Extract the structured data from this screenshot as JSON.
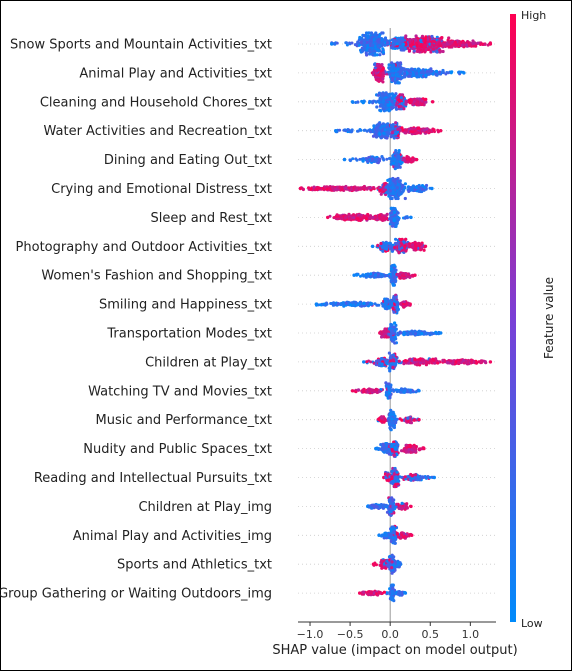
{
  "chart_data": {
    "type": "scatter",
    "subtype": "shap-beeswarm",
    "title": "",
    "xlabel": "SHAP value (impact on model output)",
    "ylabel": "",
    "xlim": [
      -1.15,
      1.32
    ],
    "xticks": [
      -1.0,
      -0.5,
      0.0,
      0.5,
      1.0
    ],
    "xtick_labels": [
      "−1.0",
      "−0.5",
      "0.0",
      "0.5",
      "1.0"
    ],
    "zero_line": true,
    "row_gridlines": "dotted",
    "colorbar": {
      "label": "Feature value",
      "high_label": "High",
      "low_label": "Low",
      "low_color": "#008bfb",
      "high_color": "#ff0051",
      "placement": "right"
    },
    "features": [
      {
        "name": "Snow Sports and Mountain Activities_txt",
        "lo": -0.73,
        "hi": 1.25,
        "clusters": [
          {
            "x": -0.22,
            "w": 0.16,
            "h": 11,
            "hiFrac": 0.0
          },
          {
            "x": 0.12,
            "w": 0.14,
            "h": 6,
            "hiFrac": 0.15
          },
          {
            "x": 0.45,
            "w": 0.22,
            "h": 8,
            "hiFrac": 0.85
          },
          {
            "x": 0.85,
            "w": 0.25,
            "h": 3,
            "hiFrac": 1.0
          }
        ]
      },
      {
        "name": "Animal Play and Activities_txt",
        "lo": -0.22,
        "hi": 0.92,
        "clusters": [
          {
            "x": -0.13,
            "w": 0.07,
            "h": 9,
            "hiFrac": 0.85
          },
          {
            "x": 0.07,
            "w": 0.09,
            "h": 10,
            "hiFrac": 0.05
          },
          {
            "x": 0.35,
            "w": 0.25,
            "h": 4,
            "hiFrac": 0.0
          }
        ]
      },
      {
        "name": "Cleaning and Household Chores_txt",
        "lo": -0.47,
        "hi": 0.53,
        "clusters": [
          {
            "x": -0.05,
            "w": 0.11,
            "h": 9,
            "hiFrac": 0.0
          },
          {
            "x": 0.13,
            "w": 0.06,
            "h": 7,
            "hiFrac": 0.6
          },
          {
            "x": 0.33,
            "w": 0.12,
            "h": 3,
            "hiFrac": 0.95
          }
        ]
      },
      {
        "name": "Water Activities and Recreation_txt",
        "lo": -0.68,
        "hi": 0.63,
        "clusters": [
          {
            "x": -0.1,
            "w": 0.11,
            "h": 8,
            "hiFrac": 0.0
          },
          {
            "x": 0.07,
            "w": 0.06,
            "h": 8,
            "hiFrac": 0.5
          },
          {
            "x": 0.35,
            "w": 0.18,
            "h": 3,
            "hiFrac": 1.0
          }
        ]
      },
      {
        "name": "Dining and Eating Out_txt",
        "lo": -0.57,
        "hi": 0.33,
        "clusters": [
          {
            "x": -0.2,
            "w": 0.1,
            "h": 3,
            "hiFrac": 0.0
          },
          {
            "x": 0.08,
            "w": 0.06,
            "h": 9,
            "hiFrac": 0.1
          },
          {
            "x": 0.23,
            "w": 0.06,
            "h": 3,
            "hiFrac": 1.0
          }
        ]
      },
      {
        "name": "Crying and Emotional Distress_txt",
        "lo": -1.12,
        "hi": 0.52,
        "clusters": [
          {
            "x": -0.6,
            "w": 0.35,
            "h": 2,
            "hiFrac": 1.0
          },
          {
            "x": -0.07,
            "w": 0.06,
            "h": 6,
            "hiFrac": 0.7
          },
          {
            "x": 0.06,
            "w": 0.1,
            "h": 10,
            "hiFrac": 0.0
          },
          {
            "x": 0.35,
            "w": 0.12,
            "h": 3,
            "hiFrac": 0.0
          }
        ]
      },
      {
        "name": "Sleep and Rest_txt",
        "lo": -0.78,
        "hi": 0.26,
        "clusters": [
          {
            "x": -0.45,
            "w": 0.22,
            "h": 3,
            "hiFrac": 1.0
          },
          {
            "x": -0.12,
            "w": 0.08,
            "h": 3,
            "hiFrac": 1.0
          },
          {
            "x": 0.05,
            "w": 0.05,
            "h": 9,
            "hiFrac": 0.0
          }
        ]
      },
      {
        "name": "Photography and Outdoor Activities_txt",
        "lo": -0.22,
        "hi": 0.44,
        "clusters": [
          {
            "x": -0.05,
            "w": 0.08,
            "h": 5,
            "hiFrac": 0.1
          },
          {
            "x": 0.14,
            "w": 0.08,
            "h": 7,
            "hiFrac": 0.55
          },
          {
            "x": 0.33,
            "w": 0.08,
            "h": 4,
            "hiFrac": 0.95
          }
        ]
      },
      {
        "name": "Women's Fashion and Shopping_txt",
        "lo": -0.45,
        "hi": 0.31,
        "clusters": [
          {
            "x": -0.18,
            "w": 0.14,
            "h": 2,
            "hiFrac": 0.0
          },
          {
            "x": 0.04,
            "w": 0.04,
            "h": 10,
            "hiFrac": 0.0
          },
          {
            "x": 0.17,
            "w": 0.08,
            "h": 3,
            "hiFrac": 0.95
          }
        ]
      },
      {
        "name": "Smiling and Happiness_txt",
        "lo": -0.92,
        "hi": 0.25,
        "clusters": [
          {
            "x": -0.45,
            "w": 0.25,
            "h": 2,
            "hiFrac": 0.0
          },
          {
            "x": -0.04,
            "w": 0.06,
            "h": 5,
            "hiFrac": 0.1
          },
          {
            "x": 0.06,
            "w": 0.04,
            "h": 9,
            "hiFrac": 0.3
          },
          {
            "x": 0.18,
            "w": 0.04,
            "h": 3,
            "hiFrac": 1.0
          }
        ]
      },
      {
        "name": "Transportation Modes_txt",
        "lo": -0.13,
        "hi": 0.63,
        "clusters": [
          {
            "x": -0.06,
            "w": 0.05,
            "h": 4,
            "hiFrac": 0.9
          },
          {
            "x": 0.03,
            "w": 0.04,
            "h": 10,
            "hiFrac": 0.05
          },
          {
            "x": 0.3,
            "w": 0.2,
            "h": 2,
            "hiFrac": 0.0
          }
        ]
      },
      {
        "name": "Children at Play_txt",
        "lo": -0.33,
        "hi": 1.25,
        "clusters": [
          {
            "x": -0.1,
            "w": 0.08,
            "h": 4,
            "hiFrac": 0.3
          },
          {
            "x": 0.03,
            "w": 0.05,
            "h": 9,
            "hiFrac": 0.2
          },
          {
            "x": 0.35,
            "w": 0.2,
            "h": 3,
            "hiFrac": 0.95
          },
          {
            "x": 0.85,
            "w": 0.25,
            "h": 2,
            "hiFrac": 1.0
          }
        ]
      },
      {
        "name": "Watching TV and Movies_txt",
        "lo": -0.47,
        "hi": 0.36,
        "clusters": [
          {
            "x": -0.25,
            "w": 0.12,
            "h": 2,
            "hiFrac": 1.0
          },
          {
            "x": -0.02,
            "w": 0.03,
            "h": 10,
            "hiFrac": 0.05
          },
          {
            "x": 0.2,
            "w": 0.08,
            "h": 2,
            "hiFrac": 0.0
          }
        ]
      },
      {
        "name": "Music and Performance_txt",
        "lo": -0.15,
        "hi": 0.36,
        "clusters": [
          {
            "x": -0.1,
            "w": 0.04,
            "h": 3,
            "hiFrac": 0.9
          },
          {
            "x": 0.02,
            "w": 0.04,
            "h": 10,
            "hiFrac": 0.05
          },
          {
            "x": 0.22,
            "w": 0.07,
            "h": 3,
            "hiFrac": 0.8
          }
        ]
      },
      {
        "name": "Nudity and Public Spaces_txt",
        "lo": -0.18,
        "hi": 0.42,
        "clusters": [
          {
            "x": -0.05,
            "w": 0.06,
            "h": 5,
            "hiFrac": 0.0
          },
          {
            "x": 0.05,
            "w": 0.05,
            "h": 8,
            "hiFrac": 0.3
          },
          {
            "x": 0.26,
            "w": 0.1,
            "h": 4,
            "hiFrac": 1.0
          }
        ]
      },
      {
        "name": "Reading and Intellectual Pursuits_txt",
        "lo": -0.08,
        "hi": 0.55,
        "clusters": [
          {
            "x": -0.03,
            "w": 0.03,
            "h": 5,
            "hiFrac": 0.7
          },
          {
            "x": 0.06,
            "w": 0.05,
            "h": 9,
            "hiFrac": 0.3
          },
          {
            "x": 0.3,
            "w": 0.12,
            "h": 3,
            "hiFrac": 0.3
          }
        ]
      },
      {
        "name": "Children at Play_img",
        "lo": -0.28,
        "hi": 0.26,
        "clusters": [
          {
            "x": -0.15,
            "w": 0.1,
            "h": 2,
            "hiFrac": 0.0
          },
          {
            "x": 0.02,
            "w": 0.04,
            "h": 9,
            "hiFrac": 0.1
          },
          {
            "x": 0.16,
            "w": 0.06,
            "h": 3,
            "hiFrac": 0.85
          }
        ]
      },
      {
        "name": "Animal Play and Activities_img",
        "lo": -0.14,
        "hi": 0.27,
        "clusters": [
          {
            "x": -0.04,
            "w": 0.03,
            "h": 3,
            "hiFrac": 0.0
          },
          {
            "x": 0.04,
            "w": 0.04,
            "h": 9,
            "hiFrac": 0.1
          },
          {
            "x": 0.17,
            "w": 0.07,
            "h": 3,
            "hiFrac": 0.9
          }
        ]
      },
      {
        "name": "Sports and Athletics_txt",
        "lo": -0.21,
        "hi": 0.13,
        "clusters": [
          {
            "x": -0.07,
            "w": 0.05,
            "h": 5,
            "hiFrac": 0.8
          },
          {
            "x": 0.02,
            "w": 0.04,
            "h": 9,
            "hiFrac": 0.05
          },
          {
            "x": 0.1,
            "w": 0.03,
            "h": 3,
            "hiFrac": 0.0
          }
        ]
      },
      {
        "name": "Group Gathering or Waiting Outdoors_img",
        "lo": -0.38,
        "hi": 0.19,
        "clusters": [
          {
            "x": -0.2,
            "w": 0.12,
            "h": 2,
            "hiFrac": 1.0
          },
          {
            "x": 0.03,
            "w": 0.03,
            "h": 8,
            "hiFrac": 0.0
          },
          {
            "x": 0.12,
            "w": 0.05,
            "h": 2,
            "hiFrac": 0.0
          }
        ]
      }
    ]
  }
}
